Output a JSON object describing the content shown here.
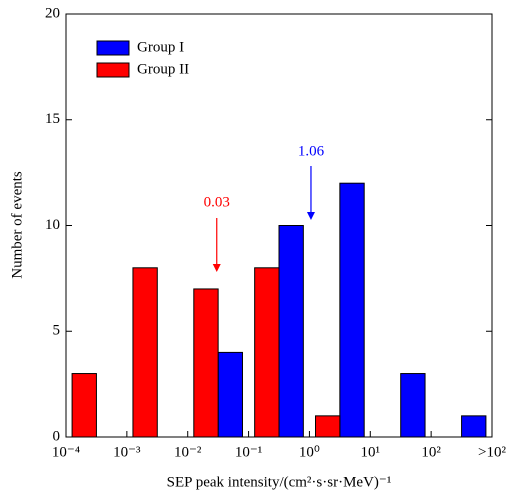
{
  "chart_data": {
    "type": "bar",
    "x_label": "SEP peak intensity/(cm²·s·sr·MeV)⁻¹",
    "y_label": "Number of events",
    "x": [
      -4,
      -3,
      -2,
      -1,
      0,
      1,
      2
    ],
    "series": [
      {
        "name": "Group I",
        "color": "#0000ff",
        "values": [
          0,
          0,
          4,
          10,
          12,
          3,
          1
        ]
      },
      {
        "name": "Group II",
        "color": "#ff0000",
        "values": [
          3,
          8,
          7,
          8,
          1,
          0,
          0
        ]
      }
    ],
    "xlim": [
      -4,
      3
    ],
    "xticks": [
      {
        "value": -4,
        "label": "10⁻⁴"
      },
      {
        "value": -3,
        "label": "10⁻³"
      },
      {
        "value": -2,
        "label": "10⁻²"
      },
      {
        "value": -1,
        "label": "10⁻¹"
      },
      {
        "value": 0,
        "label": "10⁰"
      },
      {
        "value": 1,
        "label": "10¹"
      },
      {
        "value": 2,
        "label": "10²"
      },
      {
        "value": 3,
        "label": ">10²"
      }
    ],
    "ylim": [
      0,
      20
    ],
    "yticks": [
      0,
      5,
      10,
      15,
      20
    ],
    "annotations": [
      {
        "text": "1.06",
        "color": "#0000ff"
      },
      {
        "text": "0.03",
        "color": "#ff0000"
      }
    ],
    "legend": "upper left"
  }
}
